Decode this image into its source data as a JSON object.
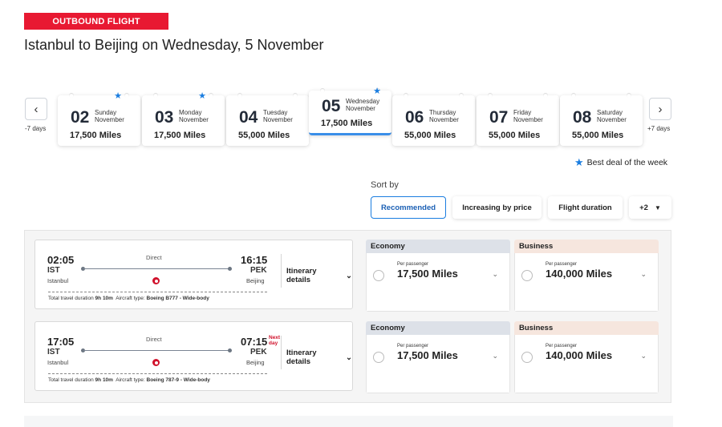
{
  "header": {
    "badge": "OUTBOUND FLIGHT",
    "title": "Istanbul to Beijing on Wednesday, 5 November"
  },
  "date_nav": {
    "prev_label": "-7 days",
    "next_label": "+7 days",
    "prev_icon": "chevron-left-icon",
    "next_icon": "chevron-right-icon",
    "dates": [
      {
        "num": "02",
        "day": "Sunday",
        "month": "November",
        "miles": "17,500 Miles",
        "best": true,
        "selected": false
      },
      {
        "num": "03",
        "day": "Monday",
        "month": "November",
        "miles": "17,500 Miles",
        "best": true,
        "selected": false
      },
      {
        "num": "04",
        "day": "Tuesday",
        "month": "November",
        "miles": "55,000 Miles",
        "best": false,
        "selected": false
      },
      {
        "num": "05",
        "day": "Wednesday",
        "month": "November",
        "miles": "17,500 Miles",
        "best": true,
        "selected": true
      },
      {
        "num": "06",
        "day": "Thursday",
        "month": "November",
        "miles": "55,000 Miles",
        "best": false,
        "selected": false
      },
      {
        "num": "07",
        "day": "Friday",
        "month": "November",
        "miles": "55,000 Miles",
        "best": false,
        "selected": false
      },
      {
        "num": "08",
        "day": "Saturday",
        "month": "November",
        "miles": "55,000 Miles",
        "best": false,
        "selected": false
      }
    ],
    "best_deal_label": "Best deal of the week"
  },
  "sort": {
    "label": "Sort by",
    "options": [
      "Recommended",
      "Increasing by price",
      "Flight duration",
      "+2"
    ],
    "active": "Recommended"
  },
  "flights": [
    {
      "dep_time": "02:05",
      "dep_code": "IST",
      "dep_city": "Istanbul",
      "arr_time": "16:15",
      "arr_code": "PEK",
      "arr_city": "Beijing",
      "next_day": "",
      "stops": "Direct",
      "itinerary_label": "Itinerary details",
      "duration_label": "Total travel duration",
      "duration": "9h 10m",
      "aircraft_label": "Aircraft type:",
      "aircraft": "Boeing B777 - Wide-body",
      "fares": [
        {
          "cabin": "Economy",
          "per_passenger": "Per passenger",
          "miles": "17,500 Miles"
        },
        {
          "cabin": "Business",
          "per_passenger": "Per passenger",
          "miles": "140,000 Miles"
        }
      ]
    },
    {
      "dep_time": "17:05",
      "dep_code": "IST",
      "dep_city": "Istanbul",
      "arr_time": "07:15",
      "arr_code": "PEK",
      "arr_city": "Beijing",
      "next_day": "Next day",
      "stops": "Direct",
      "itinerary_label": "Itinerary details",
      "duration_label": "Total travel duration",
      "duration": "9h 10m",
      "aircraft_label": "Aircraft type:",
      "aircraft": "Boeing 787-9 - Wide-body",
      "fares": [
        {
          "cabin": "Economy",
          "per_passenger": "Per passenger",
          "miles": "17,500 Miles"
        },
        {
          "cabin": "Business",
          "per_passenger": "Per passenger",
          "miles": "140,000 Miles"
        }
      ]
    }
  ],
  "colors": {
    "brand_red": "#e81932",
    "accent_blue": "#1a7de0",
    "economy_header": "#dde1e8",
    "business_header": "#f6e6de"
  }
}
